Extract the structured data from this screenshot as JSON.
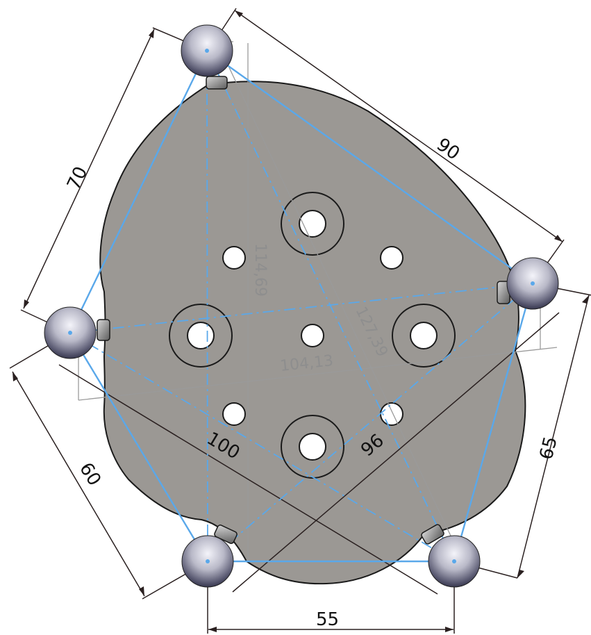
{
  "drawing": {
    "dimensions": {
      "top_right_side": "90",
      "left_upper_side": "70",
      "left_lower_side": "60",
      "right_lower_side": "65",
      "bottom_side": "55",
      "diagonal_left": "100",
      "diagonal_right": "96"
    },
    "reference_dimensions": {
      "vertical": "114,69",
      "horizontal": "104,13",
      "diagonal": "127,39"
    },
    "colors": {
      "plate": "#9b9894",
      "plate_outline": "#1a1a1a",
      "pentagon": "#5aa8ea",
      "dimension_line": "#2a2020",
      "reference_line": "#9a9a9a",
      "sphere_light": "#f4f4fa",
      "sphere_dark": "#23233a"
    }
  }
}
